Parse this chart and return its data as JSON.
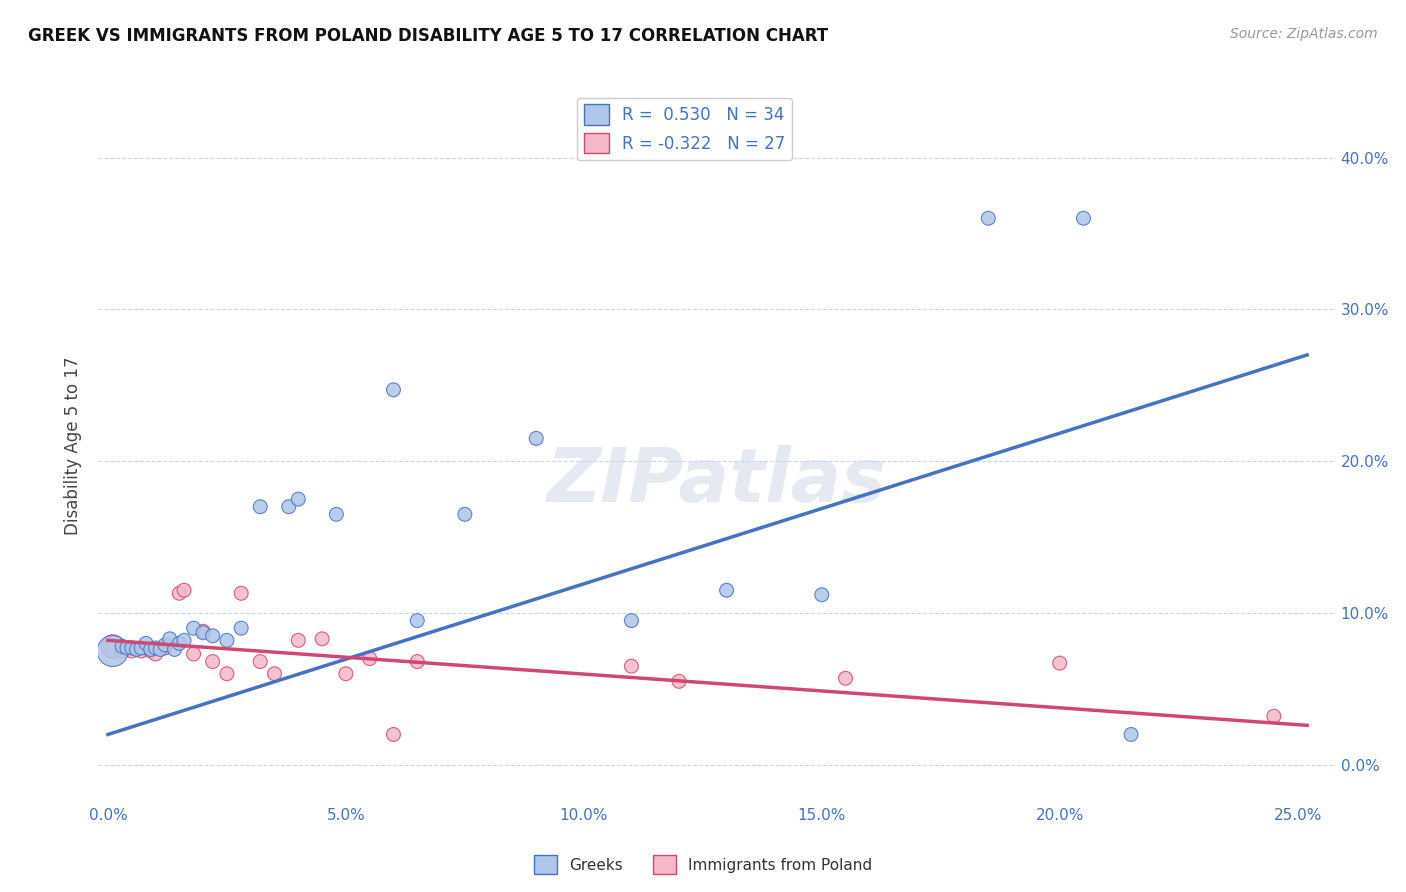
{
  "title": "GREEK VS IMMIGRANTS FROM POLAND DISABILITY AGE 5 TO 17 CORRELATION CHART",
  "source": "Source: ZipAtlas.com",
  "xlabel_ticks": [
    "0.0%",
    "5.0%",
    "10.0%",
    "15.0%",
    "20.0%",
    "25.0%"
  ],
  "xlabel_vals": [
    0.0,
    0.05,
    0.1,
    0.15,
    0.2,
    0.25
  ],
  "ylabel": "Disability Age 5 to 17",
  "ylabel_ticks": [
    "0.0%",
    "10.0%",
    "20.0%",
    "30.0%",
    "40.0%"
  ],
  "ylabel_vals": [
    0.0,
    0.1,
    0.2,
    0.3,
    0.4
  ],
  "xlim": [
    -0.002,
    0.258
  ],
  "ylim": [
    -0.025,
    0.445
  ],
  "greek_R": 0.53,
  "greek_N": 34,
  "poland_R": -0.322,
  "poland_N": 27,
  "greek_color": "#aec6e8",
  "greek_line_color": "#4472c4",
  "poland_color": "#f4b8c8",
  "poland_line_color": "#d04870",
  "watermark_text": "ZIPatlas",
  "greek_scatter_x": [
    0.001,
    0.003,
    0.004,
    0.005,
    0.006,
    0.007,
    0.008,
    0.009,
    0.01,
    0.011,
    0.012,
    0.013,
    0.014,
    0.015,
    0.016,
    0.018,
    0.02,
    0.022,
    0.025,
    0.028,
    0.032,
    0.038,
    0.04,
    0.048,
    0.06,
    0.065,
    0.075,
    0.09,
    0.11,
    0.13,
    0.15,
    0.185,
    0.205,
    0.215
  ],
  "greek_scatter_y": [
    0.075,
    0.078,
    0.077,
    0.077,
    0.076,
    0.077,
    0.08,
    0.076,
    0.077,
    0.076,
    0.079,
    0.083,
    0.076,
    0.08,
    0.082,
    0.09,
    0.087,
    0.085,
    0.082,
    0.09,
    0.17,
    0.17,
    0.175,
    0.165,
    0.247,
    0.095,
    0.165,
    0.215,
    0.095,
    0.115,
    0.112,
    0.36,
    0.36,
    0.02
  ],
  "greek_scatter_size": [
    500,
    100,
    100,
    100,
    100,
    100,
    100,
    100,
    100,
    100,
    100,
    100,
    100,
    100,
    100,
    100,
    100,
    100,
    100,
    100,
    100,
    100,
    100,
    100,
    100,
    100,
    100,
    100,
    100,
    100,
    100,
    100,
    100,
    100
  ],
  "poland_scatter_x": [
    0.001,
    0.003,
    0.005,
    0.007,
    0.009,
    0.01,
    0.012,
    0.015,
    0.016,
    0.018,
    0.02,
    0.022,
    0.025,
    0.028,
    0.032,
    0.035,
    0.04,
    0.045,
    0.05,
    0.055,
    0.06,
    0.065,
    0.11,
    0.12,
    0.155,
    0.2,
    0.245
  ],
  "poland_scatter_y": [
    0.078,
    0.075,
    0.075,
    0.075,
    0.075,
    0.073,
    0.077,
    0.113,
    0.115,
    0.073,
    0.088,
    0.068,
    0.06,
    0.113,
    0.068,
    0.06,
    0.082,
    0.083,
    0.06,
    0.07,
    0.02,
    0.068,
    0.065,
    0.055,
    0.057,
    0.067,
    0.032
  ],
  "poland_scatter_size": [
    280,
    100,
    100,
    100,
    100,
    100,
    100,
    100,
    100,
    100,
    100,
    100,
    100,
    100,
    100,
    100,
    100,
    100,
    100,
    100,
    100,
    100,
    100,
    100,
    100,
    100,
    100
  ],
  "greek_trendline_x": [
    0.0,
    0.252
  ],
  "greek_trendline_y": [
    0.02,
    0.27
  ],
  "poland_trendline_x": [
    0.0,
    0.252
  ],
  "poland_trendline_y": [
    0.082,
    0.026
  ]
}
